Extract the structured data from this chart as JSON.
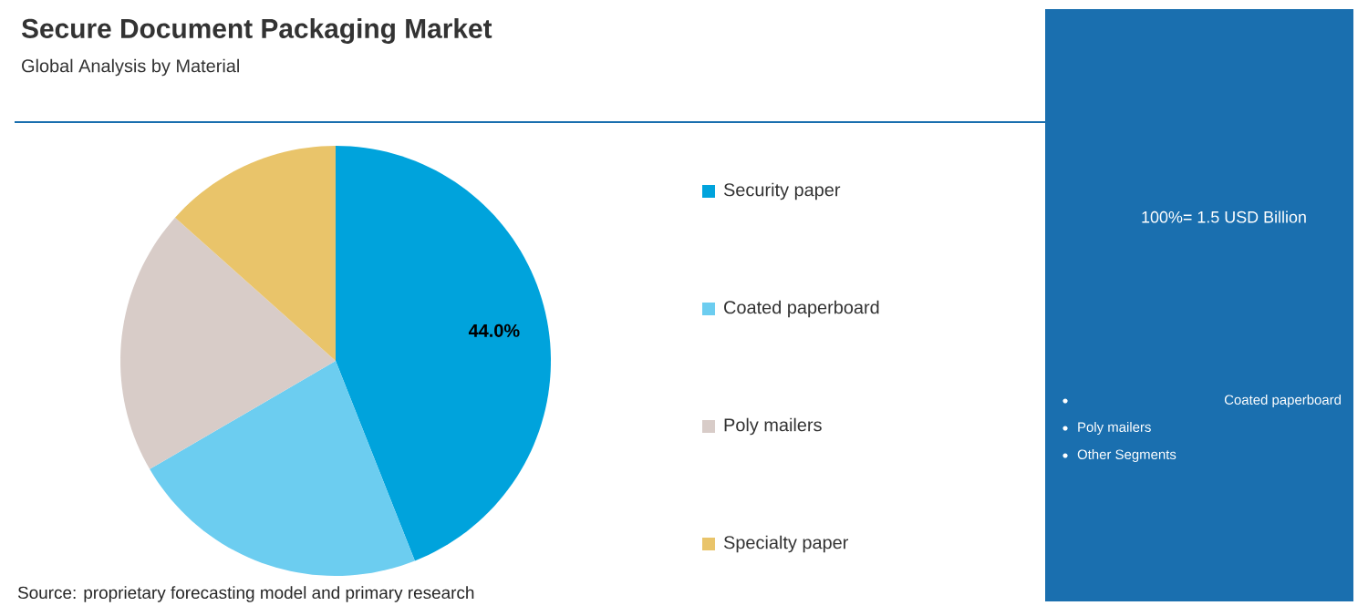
{
  "chart_data": {
    "type": "pie",
    "title": "Secure Document Packaging Market",
    "subtitle": "Global Analysis by Material",
    "categories": [
      "Security paper",
      "Coated paperboard",
      "Poly mailers",
      "Specialty paper"
    ],
    "values": [
      44.0,
      22.6,
      20.0,
      13.4
    ],
    "colors": [
      "#00a3dc",
      "#6ccdf0",
      "#d8ccc8",
      "#e9c46a"
    ],
    "value_labels": [
      "44.0%",
      null,
      null,
      null
    ],
    "legend": "right",
    "annotations": [
      "Source: proprietary forecasting model and primary research",
      "100%= 1.5 USD Billion",
      "Coated paperboard",
      "Poly mailers",
      "Other Segments"
    ]
  }
}
